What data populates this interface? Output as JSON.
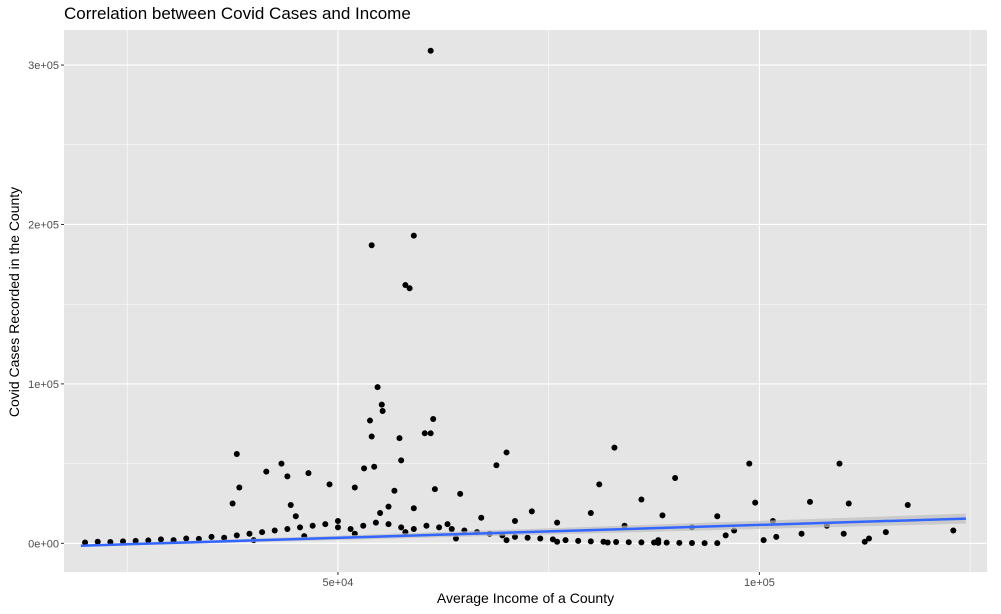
{
  "chart_data": {
    "type": "scatter",
    "title": "Correlation between Covid Cases and Income",
    "xlabel": "Average Income of a County",
    "ylabel": "Covid Cases Recorded in the County",
    "xlim": [
      17500,
      127000
    ],
    "ylim": [
      -18000,
      322000
    ],
    "x_ticks": [
      {
        "value": 50000,
        "label": "5e+04"
      },
      {
        "value": 100000,
        "label": "1e+05"
      }
    ],
    "y_ticks": [
      {
        "value": 0,
        "label": "0e+00"
      },
      {
        "value": 100000,
        "label": "1e+05"
      },
      {
        "value": 200000,
        "label": "2e+05"
      },
      {
        "value": 300000,
        "label": "3e+05"
      }
    ],
    "grid": true,
    "background": "#e5e5e5",
    "point_color": "#000000",
    "trend_line": {
      "color": "#3366ff",
      "band_color": "#bfbfbf",
      "x": [
        19500,
        124500
      ],
      "y": [
        -1500,
        15500
      ]
    },
    "points": [
      [
        61000,
        309000
      ],
      [
        54000,
        187000
      ],
      [
        59000,
        193000
      ],
      [
        58000,
        162000
      ],
      [
        58500,
        160000
      ],
      [
        54700,
        98000
      ],
      [
        55200,
        87000
      ],
      [
        55300,
        83000
      ],
      [
        61300,
        78000
      ],
      [
        53800,
        77000
      ],
      [
        61000,
        69000
      ],
      [
        60300,
        69000
      ],
      [
        57300,
        66000
      ],
      [
        54000,
        67000
      ],
      [
        82800,
        60000
      ],
      [
        38000,
        56000
      ],
      [
        70000,
        57000
      ],
      [
        57500,
        52000
      ],
      [
        98800,
        50000
      ],
      [
        43300,
        50000
      ],
      [
        109500,
        50000
      ],
      [
        41500,
        45000
      ],
      [
        54300,
        48000
      ],
      [
        53100,
        47000
      ],
      [
        68800,
        49000
      ],
      [
        46500,
        44000
      ],
      [
        44000,
        42000
      ],
      [
        90000,
        41000
      ],
      [
        49000,
        37000
      ],
      [
        38300,
        35000
      ],
      [
        81000,
        37000
      ],
      [
        52000,
        35000
      ],
      [
        56700,
        33000
      ],
      [
        61500,
        34000
      ],
      [
        64500,
        31000
      ],
      [
        86000,
        27500
      ],
      [
        99500,
        25500
      ],
      [
        106000,
        26000
      ],
      [
        110600,
        25000
      ],
      [
        117600,
        24000
      ],
      [
        37500,
        25000
      ],
      [
        44400,
        24000
      ],
      [
        56000,
        23000
      ],
      [
        59000,
        22000
      ],
      [
        73000,
        20000
      ],
      [
        80000,
        19000
      ],
      [
        95000,
        17000
      ],
      [
        88500,
        17500
      ],
      [
        101600,
        14000
      ],
      [
        108000,
        11000
      ],
      [
        115000,
        7000
      ],
      [
        102000,
        4000
      ],
      [
        113000,
        3000
      ],
      [
        123000,
        8000
      ],
      [
        45000,
        17000
      ],
      [
        50000,
        14000
      ],
      [
        55000,
        19000
      ],
      [
        63000,
        12000
      ],
      [
        67000,
        16000
      ],
      [
        71000,
        14000
      ],
      [
        76000,
        13000
      ],
      [
        84000,
        11000
      ],
      [
        92000,
        10000
      ],
      [
        97000,
        8000
      ],
      [
        105000,
        6000
      ],
      [
        110000,
        6000
      ],
      [
        112500,
        1000
      ],
      [
        100500,
        2000
      ],
      [
        96000,
        5000
      ],
      [
        88000,
        2000
      ],
      [
        20000,
        500
      ],
      [
        21500,
        1000
      ],
      [
        23000,
        800
      ],
      [
        24500,
        1200
      ],
      [
        26000,
        1500
      ],
      [
        27500,
        1800
      ],
      [
        29000,
        2500
      ],
      [
        30500,
        2000
      ],
      [
        32000,
        3000
      ],
      [
        33500,
        2800
      ],
      [
        35000,
        4000
      ],
      [
        36500,
        3500
      ],
      [
        38000,
        5000
      ],
      [
        39500,
        6000
      ],
      [
        41000,
        7000
      ],
      [
        42500,
        8000
      ],
      [
        44000,
        9000
      ],
      [
        45500,
        10000
      ],
      [
        47000,
        11000
      ],
      [
        48500,
        12000
      ],
      [
        50000,
        10000
      ],
      [
        51500,
        9000
      ],
      [
        53000,
        11000
      ],
      [
        54500,
        13000
      ],
      [
        56000,
        12000
      ],
      [
        57500,
        10000
      ],
      [
        59000,
        9000
      ],
      [
        60500,
        11000
      ],
      [
        62000,
        10000
      ],
      [
        63500,
        9000
      ],
      [
        65000,
        8000
      ],
      [
        66500,
        7000
      ],
      [
        68000,
        6000
      ],
      [
        69500,
        5000
      ],
      [
        71000,
        4000
      ],
      [
        72500,
        3500
      ],
      [
        74000,
        3000
      ],
      [
        75500,
        2500
      ],
      [
        77000,
        2000
      ],
      [
        78500,
        1500
      ],
      [
        80000,
        1200
      ],
      [
        81500,
        1000
      ],
      [
        83000,
        800
      ],
      [
        84500,
        700
      ],
      [
        86000,
        600
      ],
      [
        87500,
        500
      ],
      [
        89000,
        400
      ],
      [
        90500,
        300
      ],
      [
        92000,
        200
      ],
      [
        93500,
        150
      ],
      [
        95000,
        100
      ],
      [
        40000,
        2000
      ],
      [
        46000,
        4500
      ],
      [
        52000,
        6000
      ],
      [
        58000,
        7000
      ],
      [
        64000,
        3000
      ],
      [
        70000,
        2000
      ],
      [
        76000,
        1000
      ],
      [
        82000,
        500
      ],
      [
        88000,
        300
      ]
    ]
  }
}
